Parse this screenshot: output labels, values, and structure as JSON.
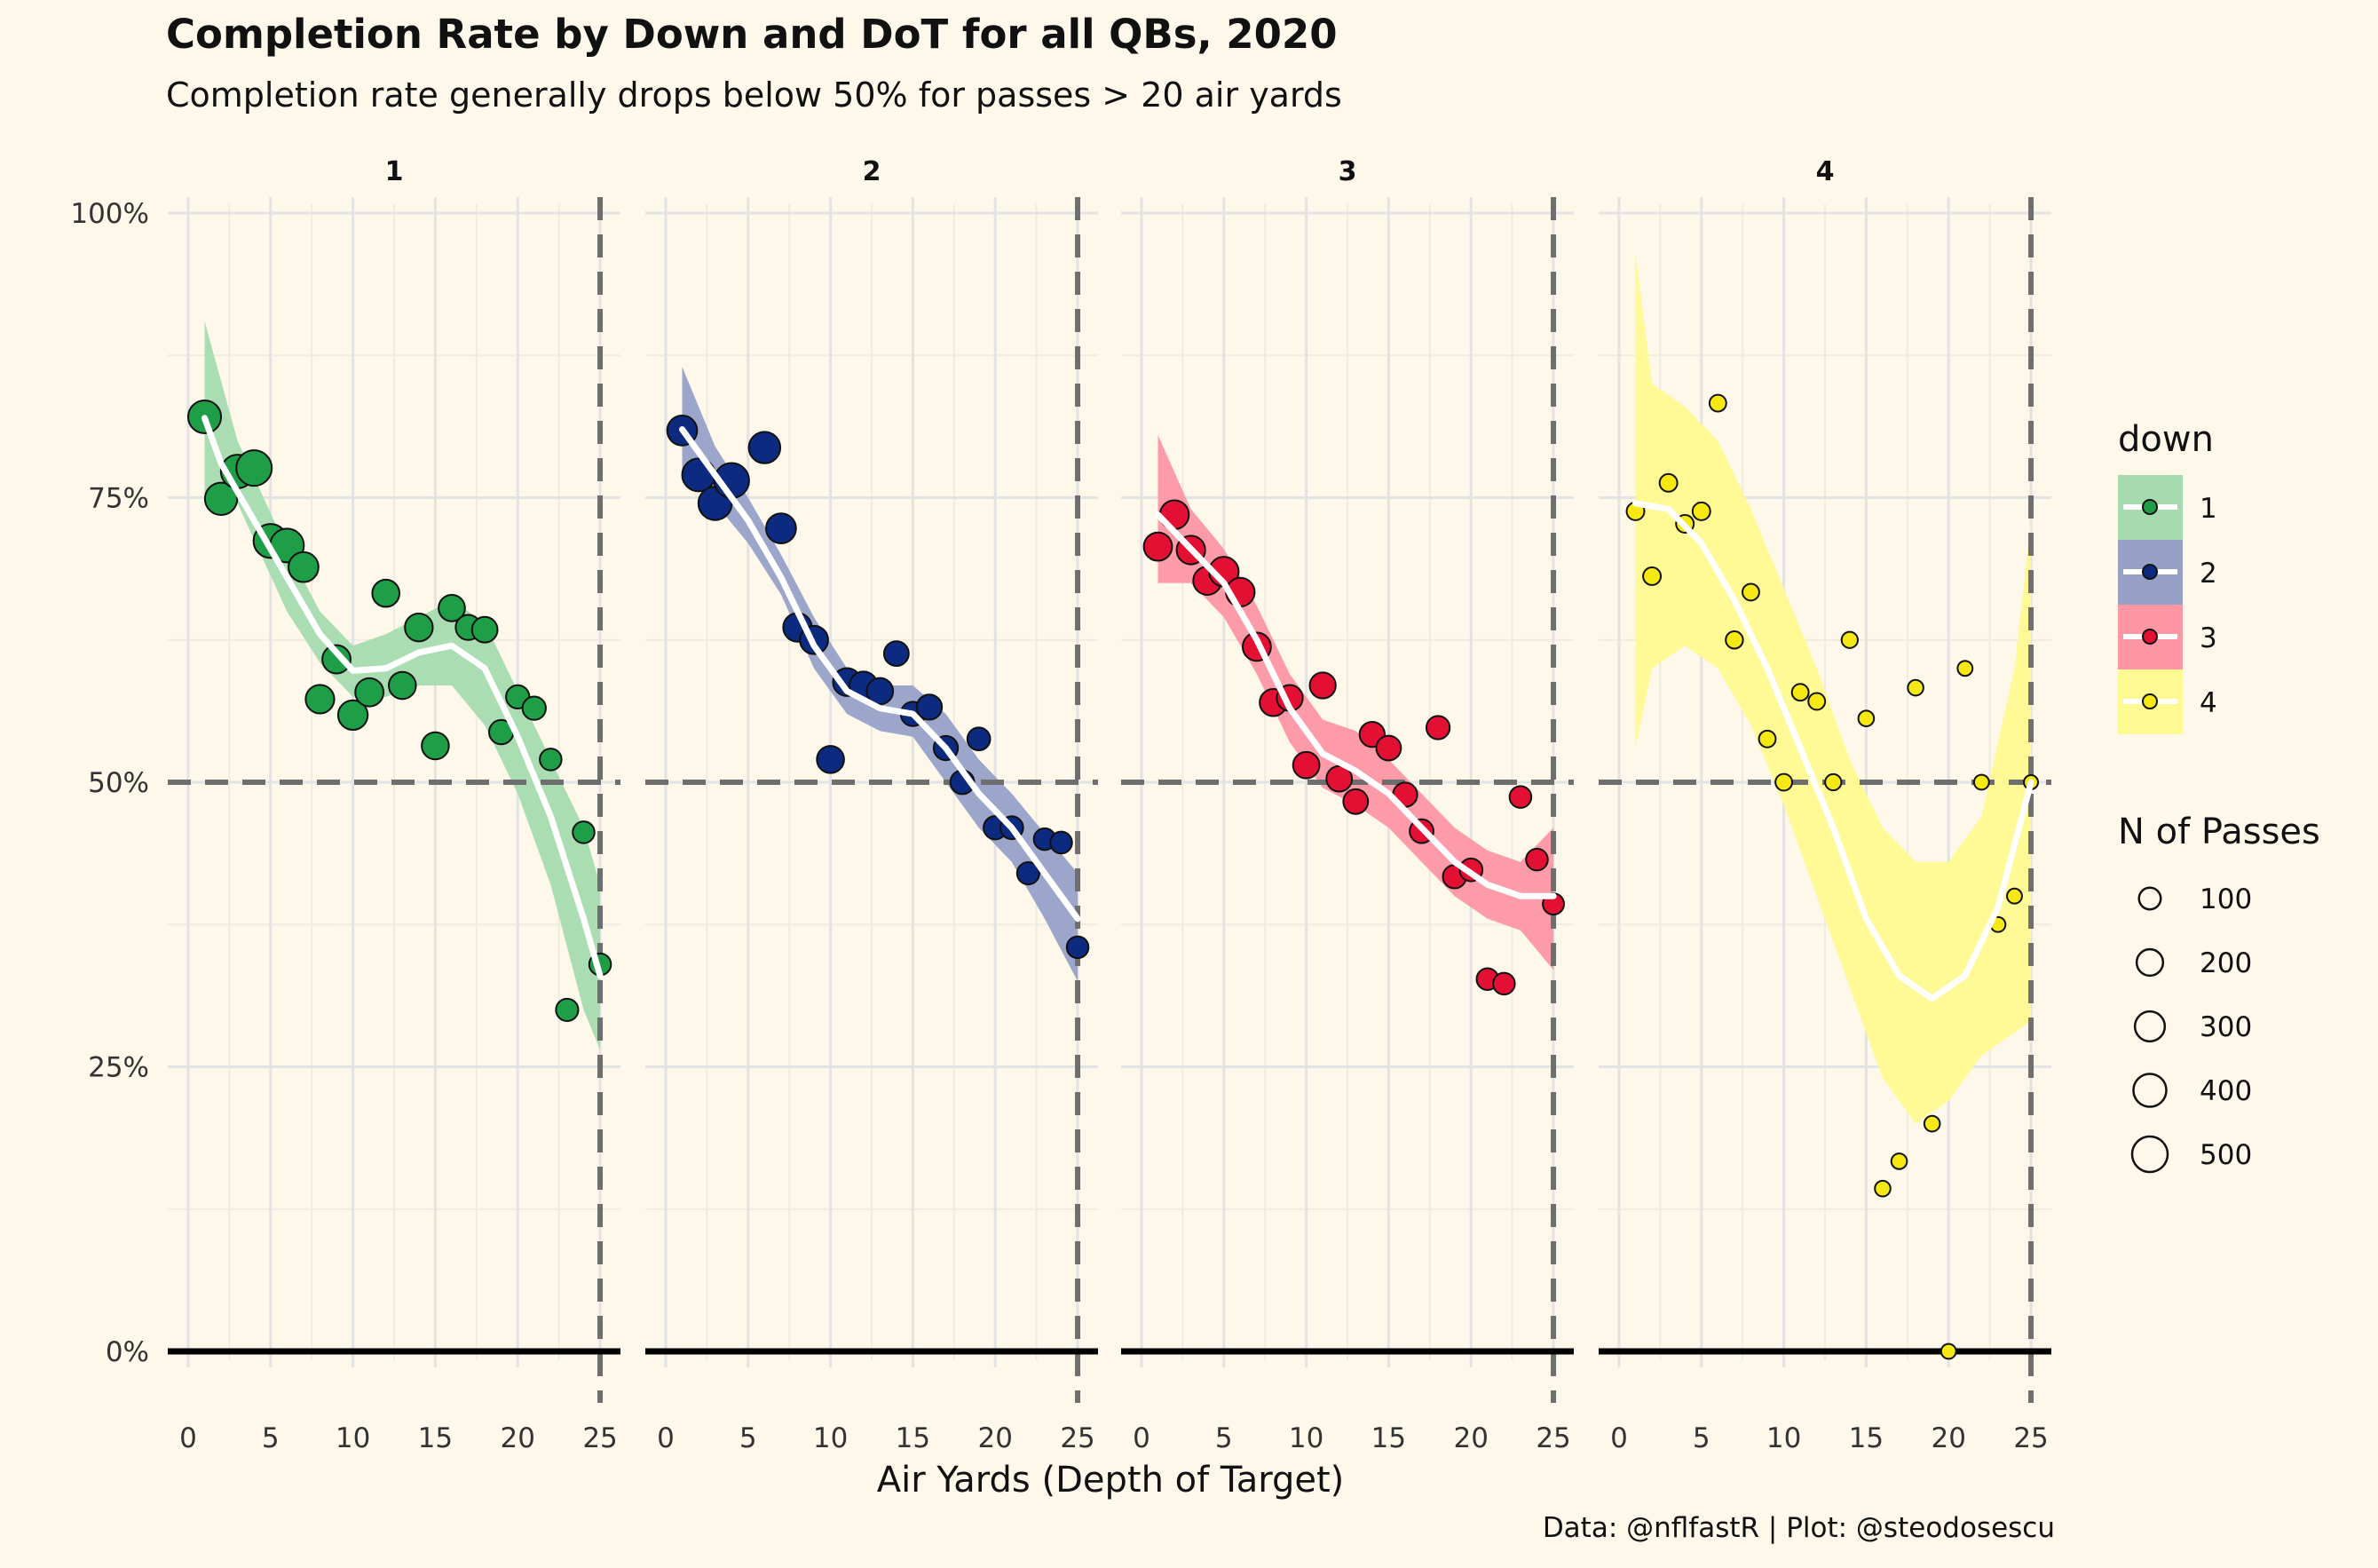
{
  "title": "Completion Rate by Down and DoT for all QBs, 2020",
  "subtitle": "Completion rate generally drops below 50% for passes > 20 air yards",
  "caption": "Data: @nflfastR | Plot: @steodosescu",
  "chart_data": {
    "type": "scatter",
    "xlabel": "Air Yards (Depth of Target)",
    "ylabel": "",
    "xlim": [
      0,
      25
    ],
    "ylim": [
      0,
      1
    ],
    "x_ticks": [
      "0",
      "5",
      "10",
      "15",
      "20",
      "25"
    ],
    "y_ticks": [
      "0%",
      "25%",
      "50%",
      "75%",
      "100%"
    ],
    "reference_lines": {
      "y": 0.5,
      "x": 25
    },
    "grid": true,
    "legend_color_title": "down",
    "legend_size_title": "N of Passes",
    "legend_size_labels": [
      "100",
      "200",
      "300",
      "400",
      "500"
    ],
    "legend_position": "right",
    "panels": [
      {
        "label": "1",
        "color": "#1f9e48",
        "band_color": "#a6dbb0",
        "points": [
          {
            "x": 1,
            "y": 0.821,
            "n": 400
          },
          {
            "x": 2,
            "y": 0.749,
            "n": 380
          },
          {
            "x": 3,
            "y": 0.773,
            "n": 420
          },
          {
            "x": 4,
            "y": 0.776,
            "n": 500
          },
          {
            "x": 5,
            "y": 0.712,
            "n": 440
          },
          {
            "x": 6,
            "y": 0.708,
            "n": 430
          },
          {
            "x": 7,
            "y": 0.689,
            "n": 300
          },
          {
            "x": 8,
            "y": 0.573,
            "n": 260
          },
          {
            "x": 9,
            "y": 0.608,
            "n": 250
          },
          {
            "x": 10,
            "y": 0.559,
            "n": 290
          },
          {
            "x": 11,
            "y": 0.579,
            "n": 250
          },
          {
            "x": 12,
            "y": 0.666,
            "n": 220
          },
          {
            "x": 13,
            "y": 0.585,
            "n": 220
          },
          {
            "x": 14,
            "y": 0.636,
            "n": 240
          },
          {
            "x": 15,
            "y": 0.532,
            "n": 220
          },
          {
            "x": 16,
            "y": 0.653,
            "n": 200
          },
          {
            "x": 17,
            "y": 0.636,
            "n": 170
          },
          {
            "x": 18,
            "y": 0.634,
            "n": 180
          },
          {
            "x": 19,
            "y": 0.544,
            "n": 150
          },
          {
            "x": 20,
            "y": 0.575,
            "n": 130
          },
          {
            "x": 21,
            "y": 0.565,
            "n": 130
          },
          {
            "x": 22,
            "y": 0.52,
            "n": 100
          },
          {
            "x": 23,
            "y": 0.3,
            "n": 110
          },
          {
            "x": 24,
            "y": 0.456,
            "n": 100
          },
          {
            "x": 25,
            "y": 0.34,
            "n": 100
          }
        ],
        "smooth": [
          [
            1,
            0.82
          ],
          [
            2,
            0.78
          ],
          [
            4,
            0.73
          ],
          [
            6,
            0.68
          ],
          [
            8,
            0.63
          ],
          [
            10,
            0.598
          ],
          [
            12,
            0.6
          ],
          [
            14,
            0.614
          ],
          [
            16,
            0.62
          ],
          [
            18,
            0.6
          ],
          [
            20,
            0.54
          ],
          [
            22,
            0.47
          ],
          [
            24,
            0.38
          ],
          [
            25,
            0.33
          ]
        ],
        "band_upper": [
          [
            1,
            0.905
          ],
          [
            3,
            0.8
          ],
          [
            6,
            0.705
          ],
          [
            8,
            0.65
          ],
          [
            10,
            0.62
          ],
          [
            12,
            0.63
          ],
          [
            14,
            0.645
          ],
          [
            16,
            0.66
          ],
          [
            18,
            0.64
          ],
          [
            20,
            0.58
          ],
          [
            22,
            0.52
          ],
          [
            24,
            0.46
          ],
          [
            25,
            0.41
          ]
        ],
        "band_lower": [
          [
            1,
            0.75
          ],
          [
            3,
            0.745
          ],
          [
            6,
            0.65
          ],
          [
            8,
            0.605
          ],
          [
            10,
            0.575
          ],
          [
            12,
            0.575
          ],
          [
            14,
            0.585
          ],
          [
            16,
            0.585
          ],
          [
            18,
            0.55
          ],
          [
            20,
            0.49
          ],
          [
            22,
            0.41
          ],
          [
            24,
            0.3
          ],
          [
            25,
            0.265
          ]
        ]
      },
      {
        "label": "2",
        "color": "#0b2a80",
        "band_color": "#97a1c8",
        "points": [
          {
            "x": 1,
            "y": 0.809,
            "n": 300
          },
          {
            "x": 2,
            "y": 0.77,
            "n": 400
          },
          {
            "x": 3,
            "y": 0.745,
            "n": 420
          },
          {
            "x": 4,
            "y": 0.765,
            "n": 480
          },
          {
            "x": 6,
            "y": 0.794,
            "n": 350
          },
          {
            "x": 7,
            "y": 0.723,
            "n": 300
          },
          {
            "x": 8,
            "y": 0.636,
            "n": 260
          },
          {
            "x": 9,
            "y": 0.625,
            "n": 250
          },
          {
            "x": 10,
            "y": 0.52,
            "n": 220
          },
          {
            "x": 11,
            "y": 0.588,
            "n": 240
          },
          {
            "x": 12,
            "y": 0.585,
            "n": 240
          },
          {
            "x": 13,
            "y": 0.58,
            "n": 200
          },
          {
            "x": 14,
            "y": 0.613,
            "n": 160
          },
          {
            "x": 15,
            "y": 0.56,
            "n": 150
          },
          {
            "x": 16,
            "y": 0.566,
            "n": 170
          },
          {
            "x": 17,
            "y": 0.53,
            "n": 150
          },
          {
            "x": 18,
            "y": 0.5,
            "n": 140
          },
          {
            "x": 19,
            "y": 0.538,
            "n": 120
          },
          {
            "x": 20,
            "y": 0.46,
            "n": 130
          },
          {
            "x": 21,
            "y": 0.46,
            "n": 120
          },
          {
            "x": 22,
            "y": 0.42,
            "n": 110
          },
          {
            "x": 23,
            "y": 0.45,
            "n": 100
          },
          {
            "x": 24,
            "y": 0.447,
            "n": 100
          },
          {
            "x": 25,
            "y": 0.355,
            "n": 100
          }
        ],
        "smooth": [
          [
            1,
            0.81
          ],
          [
            3,
            0.77
          ],
          [
            5,
            0.73
          ],
          [
            7,
            0.68
          ],
          [
            9,
            0.62
          ],
          [
            11,
            0.58
          ],
          [
            13,
            0.565
          ],
          [
            15,
            0.56
          ],
          [
            17,
            0.53
          ],
          [
            19,
            0.49
          ],
          [
            21,
            0.46
          ],
          [
            23,
            0.42
          ],
          [
            25,
            0.38
          ]
        ],
        "band_upper": [
          [
            1,
            0.865
          ],
          [
            3,
            0.795
          ],
          [
            5,
            0.75
          ],
          [
            7,
            0.7
          ],
          [
            9,
            0.645
          ],
          [
            11,
            0.6
          ],
          [
            13,
            0.585
          ],
          [
            15,
            0.585
          ],
          [
            17,
            0.56
          ],
          [
            19,
            0.52
          ],
          [
            21,
            0.49
          ],
          [
            23,
            0.455
          ],
          [
            25,
            0.42
          ]
        ],
        "band_lower": [
          [
            1,
            0.77
          ],
          [
            3,
            0.745
          ],
          [
            5,
            0.71
          ],
          [
            7,
            0.665
          ],
          [
            9,
            0.6
          ],
          [
            11,
            0.56
          ],
          [
            13,
            0.545
          ],
          [
            15,
            0.54
          ],
          [
            17,
            0.5
          ],
          [
            19,
            0.46
          ],
          [
            21,
            0.43
          ],
          [
            23,
            0.38
          ],
          [
            25,
            0.325
          ]
        ]
      },
      {
        "label": "3",
        "color": "#e31034",
        "band_color": "#fe96a4",
        "points": [
          {
            "x": 1,
            "y": 0.707,
            "n": 250
          },
          {
            "x": 2,
            "y": 0.735,
            "n": 270
          },
          {
            "x": 3,
            "y": 0.704,
            "n": 260
          },
          {
            "x": 4,
            "y": 0.677,
            "n": 250
          },
          {
            "x": 5,
            "y": 0.685,
            "n": 290
          },
          {
            "x": 6,
            "y": 0.667,
            "n": 260
          },
          {
            "x": 7,
            "y": 0.619,
            "n": 250
          },
          {
            "x": 8,
            "y": 0.57,
            "n": 220
          },
          {
            "x": 9,
            "y": 0.574,
            "n": 190
          },
          {
            "x": 10,
            "y": 0.515,
            "n": 200
          },
          {
            "x": 11,
            "y": 0.585,
            "n": 190
          },
          {
            "x": 12,
            "y": 0.503,
            "n": 180
          },
          {
            "x": 13,
            "y": 0.483,
            "n": 160
          },
          {
            "x": 14,
            "y": 0.542,
            "n": 170
          },
          {
            "x": 15,
            "y": 0.53,
            "n": 160
          },
          {
            "x": 16,
            "y": 0.489,
            "n": 150
          },
          {
            "x": 17,
            "y": 0.457,
            "n": 140
          },
          {
            "x": 18,
            "y": 0.548,
            "n": 130
          },
          {
            "x": 19,
            "y": 0.417,
            "n": 130
          },
          {
            "x": 20,
            "y": 0.423,
            "n": 120
          },
          {
            "x": 21,
            "y": 0.327,
            "n": 100
          },
          {
            "x": 22,
            "y": 0.323,
            "n": 100
          },
          {
            "x": 23,
            "y": 0.487,
            "n": 100
          },
          {
            "x": 24,
            "y": 0.432,
            "n": 100
          },
          {
            "x": 25,
            "y": 0.393,
            "n": 90
          }
        ],
        "smooth": [
          [
            1,
            0.735
          ],
          [
            3,
            0.705
          ],
          [
            5,
            0.675
          ],
          [
            7,
            0.625
          ],
          [
            9,
            0.565
          ],
          [
            11,
            0.525
          ],
          [
            13,
            0.51
          ],
          [
            15,
            0.49
          ],
          [
            17,
            0.46
          ],
          [
            19,
            0.43
          ],
          [
            21,
            0.41
          ],
          [
            23,
            0.4
          ],
          [
            25,
            0.4
          ]
        ],
        "band_upper": [
          [
            1,
            0.805
          ],
          [
            3,
            0.74
          ],
          [
            5,
            0.705
          ],
          [
            7,
            0.655
          ],
          [
            9,
            0.595
          ],
          [
            11,
            0.555
          ],
          [
            13,
            0.545
          ],
          [
            15,
            0.52
          ],
          [
            17,
            0.49
          ],
          [
            19,
            0.46
          ],
          [
            21,
            0.44
          ],
          [
            23,
            0.43
          ],
          [
            25,
            0.46
          ]
        ],
        "band_lower": [
          [
            1,
            0.675
          ],
          [
            3,
            0.675
          ],
          [
            5,
            0.645
          ],
          [
            7,
            0.595
          ],
          [
            9,
            0.535
          ],
          [
            11,
            0.495
          ],
          [
            13,
            0.48
          ],
          [
            15,
            0.46
          ],
          [
            17,
            0.43
          ],
          [
            19,
            0.4
          ],
          [
            21,
            0.38
          ],
          [
            23,
            0.37
          ],
          [
            25,
            0.335
          ]
        ]
      },
      {
        "label": "4",
        "color": "#f5e813",
        "band_color": "#fff991",
        "points": [
          {
            "x": 1,
            "y": 0.738,
            "n": 40
          },
          {
            "x": 2,
            "y": 0.681,
            "n": 40
          },
          {
            "x": 3,
            "y": 0.763,
            "n": 40
          },
          {
            "x": 4,
            "y": 0.727,
            "n": 40
          },
          {
            "x": 5,
            "y": 0.738,
            "n": 40
          },
          {
            "x": 6,
            "y": 0.833,
            "n": 30
          },
          {
            "x": 7,
            "y": 0.625,
            "n": 35
          },
          {
            "x": 8,
            "y": 0.667,
            "n": 30
          },
          {
            "x": 9,
            "y": 0.538,
            "n": 30
          },
          {
            "x": 10,
            "y": 0.5,
            "n": 30
          },
          {
            "x": 11,
            "y": 0.579,
            "n": 30
          },
          {
            "x": 12,
            "y": 0.571,
            "n": 30
          },
          {
            "x": 13,
            "y": 0.5,
            "n": 25
          },
          {
            "x": 14,
            "y": 0.625,
            "n": 25
          },
          {
            "x": 15,
            "y": 0.556,
            "n": 20
          },
          {
            "x": 16,
            "y": 0.143,
            "n": 20
          },
          {
            "x": 17,
            "y": 0.167,
            "n": 20
          },
          {
            "x": 18,
            "y": 0.583,
            "n": 20
          },
          {
            "x": 19,
            "y": 0.2,
            "n": 20
          },
          {
            "x": 20,
            "y": 0.0,
            "n": 15
          },
          {
            "x": 21,
            "y": 0.6,
            "n": 15
          },
          {
            "x": 22,
            "y": 0.5,
            "n": 15
          },
          {
            "x": 23,
            "y": 0.375,
            "n": 15
          },
          {
            "x": 24,
            "y": 0.4,
            "n": 15
          },
          {
            "x": 25,
            "y": 0.5,
            "n": 10
          }
        ],
        "smooth": [
          [
            1,
            0.745
          ],
          [
            3,
            0.74
          ],
          [
            5,
            0.71
          ],
          [
            7,
            0.66
          ],
          [
            9,
            0.6
          ],
          [
            11,
            0.53
          ],
          [
            13,
            0.46
          ],
          [
            15,
            0.38
          ],
          [
            17,
            0.33
          ],
          [
            19,
            0.31
          ],
          [
            21,
            0.33
          ],
          [
            23,
            0.39
          ],
          [
            25,
            0.5
          ]
        ],
        "band_upper": [
          [
            1,
            0.965
          ],
          [
            2,
            0.85
          ],
          [
            4,
            0.83
          ],
          [
            6,
            0.8
          ],
          [
            8,
            0.74
          ],
          [
            10,
            0.67
          ],
          [
            12,
            0.6
          ],
          [
            14,
            0.52
          ],
          [
            16,
            0.46
          ],
          [
            18,
            0.43
          ],
          [
            20,
            0.43
          ],
          [
            22,
            0.47
          ],
          [
            24,
            0.6
          ],
          [
            25,
            0.73
          ]
        ],
        "band_lower": [
          [
            1,
            0.53
          ],
          [
            2,
            0.6
          ],
          [
            4,
            0.62
          ],
          [
            6,
            0.6
          ],
          [
            8,
            0.55
          ],
          [
            10,
            0.48
          ],
          [
            12,
            0.4
          ],
          [
            14,
            0.32
          ],
          [
            16,
            0.24
          ],
          [
            18,
            0.2
          ],
          [
            20,
            0.22
          ],
          [
            22,
            0.26
          ],
          [
            24,
            0.28
          ],
          [
            25,
            0.29
          ]
        ]
      }
    ]
  }
}
